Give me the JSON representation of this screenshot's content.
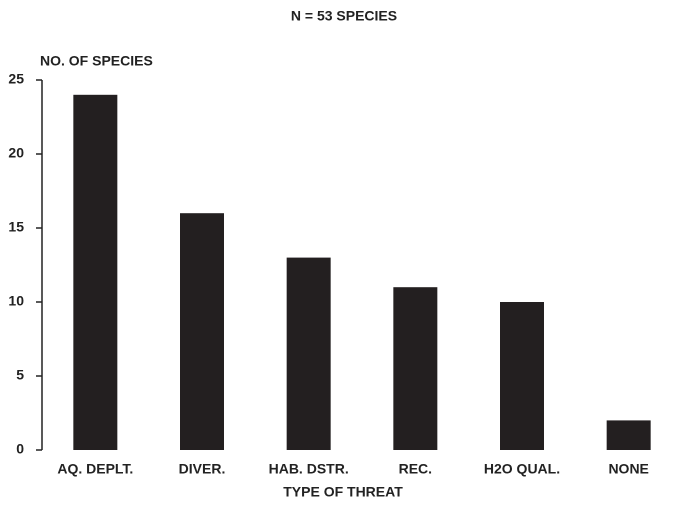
{
  "chart_data": {
    "type": "bar",
    "title": "N = 53 SPECIES",
    "y_label": "NO. OF SPECIES",
    "x_label": "TYPE OF THREAT",
    "categories": [
      "AQ. DEPLT.",
      "DIVER.",
      "HAB. DSTR.",
      "REC.",
      "H2O QUAL.",
      "NONE"
    ],
    "values": [
      24,
      16,
      13,
      11,
      10,
      2
    ],
    "color": "#231f20",
    "ylim": [
      0,
      25
    ],
    "yticks": [
      0,
      5,
      10,
      15,
      20,
      25
    ],
    "grid": false
  }
}
